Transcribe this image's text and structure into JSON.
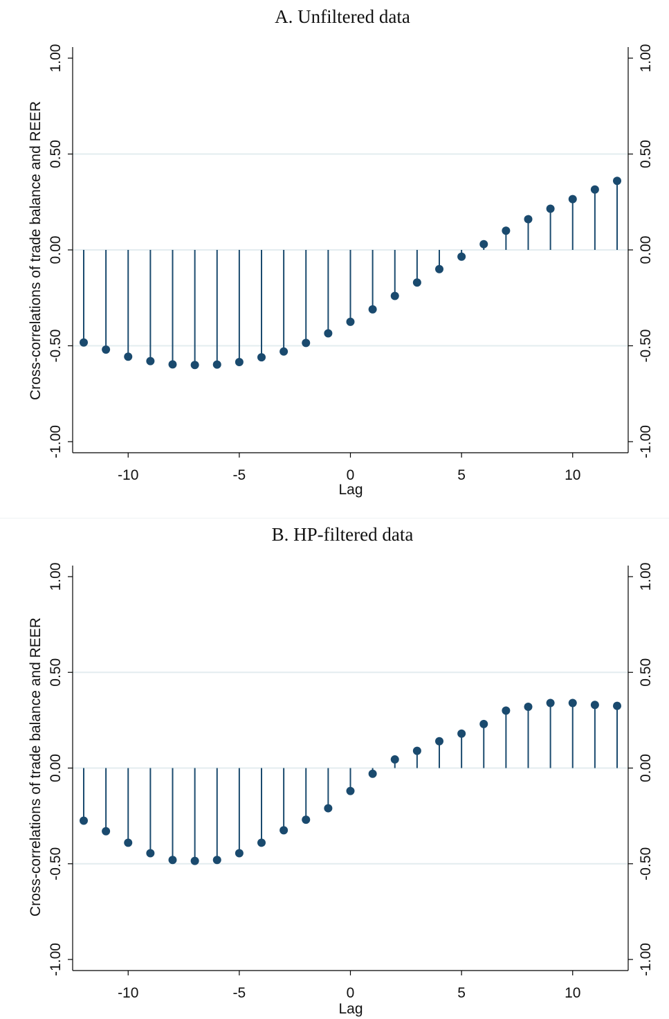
{
  "chart_data": [
    {
      "type": "stem",
      "title": "A. Unfiltered data",
      "xlabel": "Lag",
      "ylabel": "Cross-correlations of trade balance and REER",
      "xlim": [
        -12,
        12
      ],
      "ylim": [
        -1.0,
        1.0
      ],
      "xticks": [
        "-10",
        "-5",
        "0",
        "5",
        "10"
      ],
      "yticks": [
        "-1.00",
        "-0.50",
        "0.00",
        "0.50",
        "1.00"
      ],
      "grid": true,
      "x": [
        -12,
        -11,
        -10,
        -9,
        -8,
        -7,
        -6,
        -5,
        -4,
        -3,
        -2,
        -1,
        0,
        1,
        2,
        3,
        4,
        5,
        6,
        7,
        8,
        9,
        10,
        11,
        12
      ],
      "values": [
        -0.483,
        -0.52,
        -0.557,
        -0.58,
        -0.597,
        -0.6,
        -0.598,
        -0.585,
        -0.56,
        -0.53,
        -0.485,
        -0.435,
        -0.375,
        -0.31,
        -0.24,
        -0.17,
        -0.1,
        -0.035,
        0.03,
        0.1,
        0.16,
        0.215,
        0.265,
        0.315,
        0.36
      ],
      "marker_color": "#1a4a6e"
    },
    {
      "type": "stem",
      "title": "B. HP-filtered data",
      "xlabel": "Lag",
      "ylabel": "Cross-correlations of trade balance and REER",
      "xlim": [
        -12,
        12
      ],
      "ylim": [
        -1.0,
        1.0
      ],
      "xticks": [
        "-10",
        "-5",
        "0",
        "5",
        "10"
      ],
      "yticks": [
        "-1.00",
        "-0.50",
        "0.00",
        "0.50",
        "1.00"
      ],
      "grid": true,
      "x": [
        -12,
        -11,
        -10,
        -9,
        -8,
        -7,
        -6,
        -5,
        -4,
        -3,
        -2,
        -1,
        0,
        1,
        2,
        3,
        4,
        5,
        6,
        7,
        8,
        9,
        10,
        11,
        12
      ],
      "values": [
        -0.275,
        -0.33,
        -0.39,
        -0.445,
        -0.48,
        -0.485,
        -0.48,
        -0.445,
        -0.39,
        -0.325,
        -0.27,
        -0.21,
        -0.12,
        -0.03,
        0.045,
        0.09,
        0.14,
        0.18,
        0.23,
        0.3,
        0.32,
        0.34,
        0.34,
        0.33,
        0.325
      ],
      "marker_color": "#1a4a6e"
    }
  ]
}
